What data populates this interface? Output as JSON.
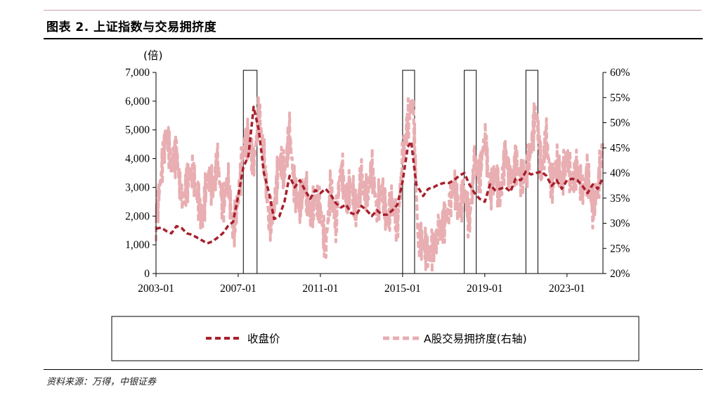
{
  "header": {
    "title": "图表 2.  上证指数与交易拥挤度"
  },
  "footer": {
    "source": "资料来源：万得，中银证券"
  },
  "colors": {
    "close": "#a8202c",
    "crowd": "#e8aeb2",
    "box": "#000000"
  },
  "chart_data": {
    "type": "line",
    "y_unit_label": "(倍)",
    "x_tick_labels": [
      "2003-01",
      "2007-01",
      "2011-01",
      "2015-01",
      "2019-01",
      "2023-01"
    ],
    "x_tick_dates": [
      "2003-01",
      "2007-01",
      "2011-01",
      "2015-01",
      "2019-01",
      "2023-01"
    ],
    "x_range": [
      "2003-01",
      "2024-10"
    ],
    "y_left_range": [
      0,
      7000
    ],
    "y_left_ticks": [
      0,
      1000,
      2000,
      3000,
      4000,
      5000,
      6000,
      7000
    ],
    "y_left_tick_labels": [
      "0",
      "1,000",
      "2,000",
      "3,000",
      "4,000",
      "5,000",
      "6,000",
      "7,000"
    ],
    "y_right_range": [
      20,
      60
    ],
    "y_right_ticks": [
      20,
      25,
      30,
      35,
      40,
      45,
      50,
      55,
      60
    ],
    "y_right_tick_labels": [
      "20%",
      "25%",
      "30%",
      "35%",
      "40%",
      "45%",
      "50%",
      "55%",
      "60%"
    ],
    "legend": {
      "position": "bottom",
      "items": [
        "收盘价",
        "A股交易拥挤度(右轴)"
      ]
    },
    "highlight_periods": [
      {
        "start": "2007-04",
        "end": "2007-12"
      },
      {
        "start": "2015-01",
        "end": "2015-08"
      },
      {
        "start": "2018-01",
        "end": "2018-08"
      },
      {
        "start": "2021-01",
        "end": "2021-08"
      }
    ],
    "series": [
      {
        "name": "收盘价",
        "axis": "left",
        "style": "dashed",
        "x": [
          "2003-01",
          "2003-04",
          "2003-07",
          "2003-10",
          "2004-01",
          "2004-04",
          "2004-07",
          "2004-10",
          "2005-01",
          "2005-04",
          "2005-07",
          "2005-10",
          "2006-01",
          "2006-04",
          "2006-07",
          "2006-10",
          "2007-01",
          "2007-04",
          "2007-07",
          "2007-10",
          "2008-01",
          "2008-04",
          "2008-07",
          "2008-10",
          "2009-01",
          "2009-04",
          "2009-07",
          "2009-10",
          "2010-01",
          "2010-04",
          "2010-07",
          "2010-10",
          "2011-01",
          "2011-04",
          "2011-07",
          "2011-10",
          "2012-01",
          "2012-04",
          "2012-07",
          "2012-10",
          "2013-01",
          "2013-04",
          "2013-07",
          "2013-10",
          "2014-01",
          "2014-04",
          "2014-07",
          "2014-10",
          "2015-01",
          "2015-04",
          "2015-06",
          "2015-09",
          "2016-01",
          "2016-04",
          "2016-07",
          "2016-10",
          "2017-01",
          "2017-04",
          "2017-07",
          "2017-10",
          "2018-01",
          "2018-04",
          "2018-07",
          "2018-10",
          "2019-01",
          "2019-04",
          "2019-07",
          "2019-10",
          "2020-01",
          "2020-04",
          "2020-07",
          "2020-10",
          "2021-01",
          "2021-04",
          "2021-07",
          "2021-10",
          "2022-01",
          "2022-04",
          "2022-07",
          "2022-10",
          "2023-01",
          "2023-04",
          "2023-07",
          "2023-10",
          "2024-01",
          "2024-04",
          "2024-07",
          "2024-10"
        ],
        "values": [
          1560,
          1600,
          1480,
          1400,
          1650,
          1580,
          1400,
          1350,
          1250,
          1150,
          1050,
          1120,
          1250,
          1400,
          1650,
          1800,
          2700,
          3700,
          4100,
          5800,
          5000,
          3500,
          2800,
          1900,
          1990,
          2500,
          3400,
          3000,
          3250,
          2900,
          2600,
          2900,
          2800,
          2950,
          2750,
          2450,
          2300,
          2400,
          2100,
          2050,
          2350,
          2200,
          2000,
          2200,
          2050,
          2050,
          2200,
          2400,
          3200,
          4400,
          4600,
          3100,
          2700,
          2950,
          3000,
          3100,
          3150,
          3150,
          3250,
          3400,
          3500,
          3100,
          2800,
          2600,
          2500,
          3100,
          2900,
          2950,
          3000,
          2850,
          3300,
          3250,
          3550,
          3450,
          3500,
          3550,
          3400,
          3050,
          3250,
          2950,
          3250,
          3300,
          3250,
          3050,
          2800,
          3100,
          2950,
          3350
        ]
      },
      {
        "name": "A股交易拥挤度(右轴)",
        "axis": "right",
        "style": "dashed",
        "x": [
          "2003-01",
          "2003-04",
          "2003-07",
          "2003-10",
          "2004-01",
          "2004-04",
          "2004-07",
          "2004-10",
          "2005-01",
          "2005-04",
          "2005-07",
          "2005-10",
          "2006-01",
          "2006-04",
          "2006-07",
          "2006-10",
          "2007-01",
          "2007-04",
          "2007-07",
          "2007-10",
          "2008-01",
          "2008-04",
          "2008-07",
          "2008-10",
          "2009-01",
          "2009-04",
          "2009-07",
          "2009-10",
          "2010-01",
          "2010-04",
          "2010-07",
          "2010-10",
          "2011-01",
          "2011-04",
          "2011-07",
          "2011-10",
          "2012-01",
          "2012-04",
          "2012-07",
          "2012-10",
          "2013-01",
          "2013-04",
          "2013-07",
          "2013-10",
          "2014-01",
          "2014-04",
          "2014-07",
          "2014-10",
          "2015-01",
          "2015-04",
          "2015-07",
          "2015-10",
          "2016-01",
          "2016-04",
          "2016-07",
          "2016-10",
          "2017-01",
          "2017-04",
          "2017-07",
          "2017-10",
          "2018-01",
          "2018-04",
          "2018-07",
          "2018-10",
          "2019-01",
          "2019-04",
          "2019-07",
          "2019-10",
          "2020-01",
          "2020-04",
          "2020-07",
          "2020-10",
          "2021-01",
          "2021-04",
          "2021-07",
          "2021-10",
          "2022-01",
          "2022-04",
          "2022-07",
          "2022-10",
          "2023-01",
          "2023-04",
          "2023-07",
          "2023-10",
          "2024-01",
          "2024-04",
          "2024-07",
          "2024-10"
        ],
        "values": [
          30,
          40,
          48,
          42,
          44,
          34,
          38,
          41,
          36,
          30,
          40,
          37,
          42,
          33,
          39,
          28,
          35,
          45,
          47,
          41,
          52,
          44,
          30,
          33,
          43,
          40,
          48,
          36,
          34,
          38,
          31,
          35,
          33,
          25,
          37,
          30,
          42,
          34,
          38,
          32,
          39,
          35,
          41,
          33,
          37,
          30,
          35,
          29,
          43,
          50,
          55,
          27,
          26,
          24,
          25,
          28,
          30,
          33,
          38,
          32,
          37,
          30,
          42,
          39,
          48,
          36,
          40,
          35,
          44,
          38,
          42,
          39,
          40,
          45,
          53,
          40,
          47,
          37,
          42,
          39,
          43,
          38,
          41,
          36,
          40,
          33,
          37,
          46
        ]
      }
    ]
  }
}
